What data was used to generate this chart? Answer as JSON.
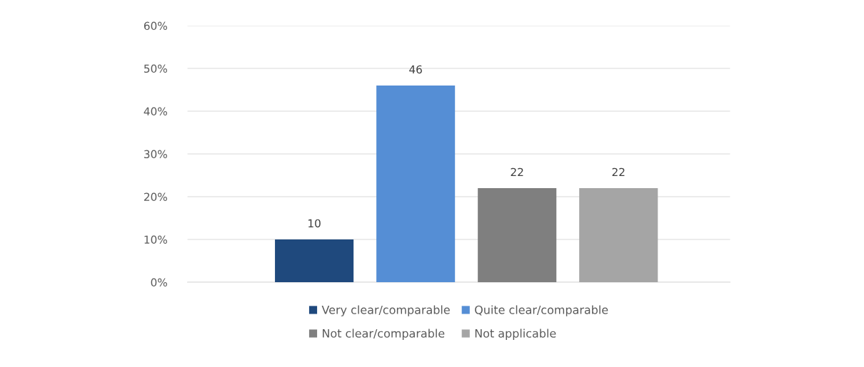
{
  "chart_data": {
    "type": "bar",
    "categories": [
      null
    ],
    "series": [
      {
        "name": "Very clear/comparable",
        "color": "#1f497d",
        "values": [
          10
        ]
      },
      {
        "name": "Quite clear/comparable",
        "color": "#558ed5",
        "values": [
          46
        ]
      },
      {
        "name": "Not clear/comparable",
        "color": "#7f7f7f",
        "values": [
          22
        ]
      },
      {
        "name": "Not applicable",
        "color": "#a5a5a5",
        "values": [
          22
        ]
      }
    ],
    "ylim": [
      0,
      60
    ],
    "yticks": [
      {
        "value": 0,
        "label": "0%"
      },
      {
        "value": 10,
        "label": "10%"
      },
      {
        "value": 20,
        "label": "20%"
      },
      {
        "value": 30,
        "label": "30%"
      },
      {
        "value": 40,
        "label": "40%"
      },
      {
        "value": 50,
        "label": "50%"
      },
      {
        "value": 60,
        "label": "60%"
      }
    ],
    "data_labels": true,
    "grid": "y",
    "legend": "bottom"
  }
}
